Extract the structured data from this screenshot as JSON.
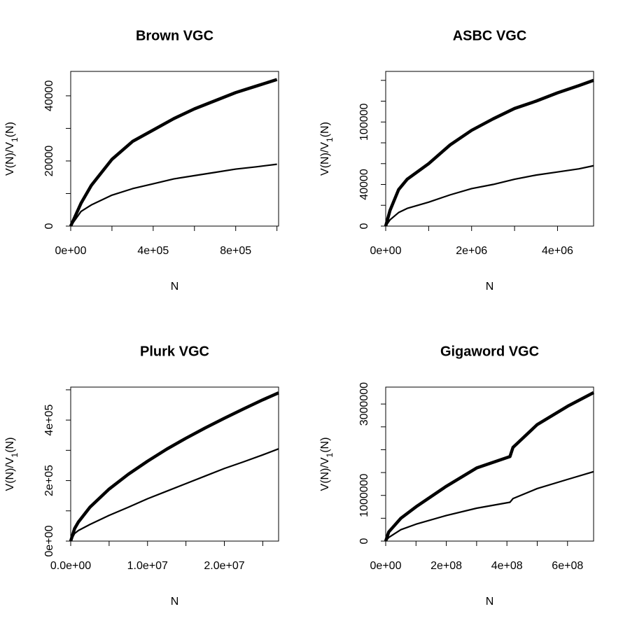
{
  "chart_data": [
    {
      "type": "line",
      "title": "Brown VGC",
      "xlabel": "N",
      "ylabel_parts": [
        "V(N)/V",
        "1",
        "(N)"
      ],
      "x": [
        0,
        50000,
        100000,
        200000,
        300000,
        400000,
        500000,
        600000,
        700000,
        800000,
        900000,
        1000000
      ],
      "series": [
        {
          "color": "#000000",
          "values": [
            0,
            7000,
            12500,
            20500,
            26000,
            29500,
            33000,
            36000,
            38500,
            41000,
            43000,
            45000
          ]
        },
        {
          "color": "#000000",
          "values": [
            0,
            4500,
            6500,
            9500,
            11500,
            13000,
            14500,
            15500,
            16500,
            17500,
            18200,
            19000
          ]
        }
      ],
      "xlim": [
        0,
        1008000
      ],
      "ylim": [
        0,
        47500
      ],
      "xticks": [
        {
          "value": 0,
          "label": "0e+00"
        },
        {
          "value": 400000,
          "label": "4e+05"
        },
        {
          "value": 800000,
          "label": "8e+05"
        }
      ],
      "xminorticks": [
        200000,
        600000,
        1000000
      ],
      "yticks": [
        0,
        20000,
        40000
      ],
      "yminorticks": [
        10000,
        30000
      ]
    },
    {
      "type": "line",
      "title": "ASBC VGC",
      "xlabel": "N",
      "ylabel_parts": [
        "V(N)/V",
        "1",
        "(N)"
      ],
      "x": [
        0,
        100000,
        300000,
        500000,
        1000000,
        1500000,
        2000000,
        2500000,
        3000000,
        3500000,
        4000000,
        4500000,
        4840000
      ],
      "series": [
        {
          "color": "#000000",
          "values": [
            0,
            15000,
            35000,
            45000,
            60000,
            78000,
            92000,
            103000,
            113000,
            120000,
            128000,
            135000,
            140000
          ]
        },
        {
          "color": "#000000",
          "values": [
            0,
            6000,
            13000,
            17000,
            23000,
            30000,
            36000,
            40000,
            45000,
            49000,
            52000,
            55000,
            58000
          ]
        }
      ],
      "xlim": [
        0,
        4840000
      ],
      "ylim": [
        0,
        148600
      ],
      "xticks": [
        {
          "value": 0,
          "label": "0e+00"
        },
        {
          "value": 2000000,
          "label": "2e+06"
        },
        {
          "value": 4000000,
          "label": "4e+06"
        }
      ],
      "xminorticks": [
        1000000,
        3000000
      ],
      "yticks": [
        0,
        40000,
        100000
      ],
      "yminorticks": [
        20000,
        60000,
        80000,
        120000,
        140000
      ]
    },
    {
      "type": "line",
      "title": "Plurk VGC",
      "xlabel": "N",
      "ylabel_parts": [
        "V(N)/V",
        "1",
        "(N)"
      ],
      "x": [
        0,
        500000,
        1000000,
        2500000,
        5000000,
        7500000,
        10000000,
        12500000,
        15000000,
        17500000,
        20000000,
        22500000,
        25000000,
        27060000
      ],
      "series": [
        {
          "color": "#000000",
          "values": [
            0,
            41000,
            63000,
            112000,
            172000,
            221000,
            264000,
            304000,
            340000,
            374000,
            406000,
            437000,
            467000,
            490000
          ]
        },
        {
          "color": "#000000",
          "values": [
            0,
            25000,
            35000,
            55000,
            85000,
            112000,
            140000,
            165000,
            190000,
            215000,
            240000,
            262000,
            285000,
            305000
          ]
        }
      ],
      "xlim": [
        0,
        27060000
      ],
      "ylim": [
        0,
        509000
      ],
      "xticks": [
        {
          "value": 0,
          "label": "0.0e+00"
        },
        {
          "value": 10000000,
          "label": "1.0e+07"
        },
        {
          "value": 20000000,
          "label": "2.0e+07"
        }
      ],
      "xminorticks": [
        5000000,
        15000000,
        25000000
      ],
      "yticks": [
        {
          "value": 0,
          "label": "0e+00"
        },
        {
          "value": 200000,
          "label": "2e+05"
        },
        {
          "value": 400000,
          "label": "4e+05"
        }
      ],
      "yminorticks": [
        100000,
        300000,
        500000
      ]
    },
    {
      "type": "line",
      "title": "Gigaword VGC",
      "xlabel": "N",
      "ylabel_parts": [
        "V(N)/V",
        "1",
        "(N)"
      ],
      "x": [
        0,
        10000000,
        50000000,
        100000000,
        200000000,
        300000000,
        410000000,
        420000000,
        500000000,
        600000000,
        686000000
      ],
      "series": [
        {
          "color": "#000000",
          "values": [
            0,
            200000,
            500000,
            750000,
            1200000,
            1600000,
            1850000,
            2050000,
            2550000,
            2950000,
            3250000
          ]
        },
        {
          "color": "#000000",
          "values": [
            0,
            80000,
            250000,
            370000,
            560000,
            720000,
            850000,
            930000,
            1150000,
            1350000,
            1520000
          ]
        }
      ],
      "xlim": [
        0,
        686000000
      ],
      "ylim": [
        0,
        3370000
      ],
      "xticks": [
        {
          "value": 0,
          "label": "0e+00"
        },
        {
          "value": 200000000,
          "label": "2e+08"
        },
        {
          "value": 400000000,
          "label": "4e+08"
        },
        {
          "value": 600000000,
          "label": "6e+08"
        }
      ],
      "xminorticks": [
        100000000,
        300000000,
        500000000
      ],
      "yticks": [
        0,
        1000000,
        3000000
      ],
      "yminorticks": [
        500000,
        1500000,
        2000000,
        2500000
      ]
    }
  ]
}
